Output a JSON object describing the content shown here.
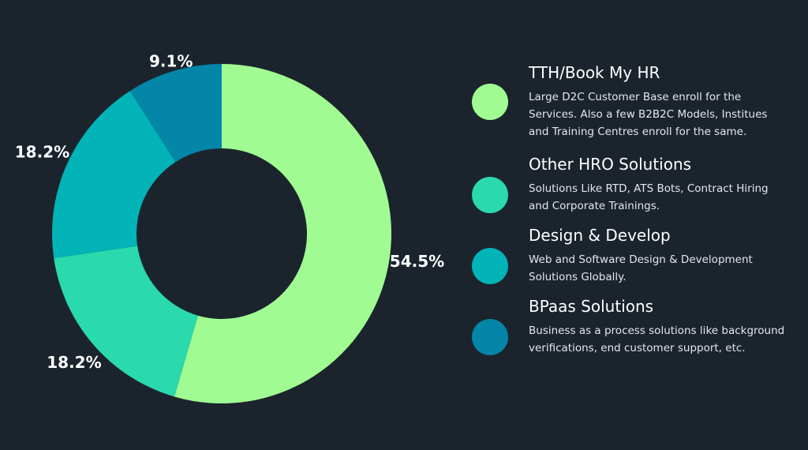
{
  "chart_data": {
    "type": "pie",
    "donut": true,
    "categories": [
      "TTH/Book My HR",
      "Other HRO Solutions",
      "Design & Develop",
      "BPaas Solutions"
    ],
    "values": [
      54.5,
      18.2,
      18.2,
      9.1
    ],
    "labels": [
      "54.5%",
      "18.2%",
      "18.2%",
      "9.1%"
    ],
    "colors": [
      "#a0fc92",
      "#2ad9ac",
      "#02b3b8",
      "#0386a8"
    ],
    "legend_position": "right"
  },
  "legend": {
    "items": [
      {
        "title": "TTH/Book My HR",
        "description": "Large D2C Customer Base enroll for the Services. Also a few B2B2C Models, Institues and Training Centres enroll for the same.",
        "color": "#a0fc92"
      },
      {
        "title": "Other HRO Solutions",
        "description": "Solutions Like RTD, ATS Bots, Contract Hiring and Corporate Trainings.",
        "color": "#2ad9ac"
      },
      {
        "title": "Design & Develop",
        "description": "Web and Software Design & Development Solutions Globally.",
        "color": "#02b3b8"
      },
      {
        "title": "BPaas Solutions",
        "description": "Business as a process solutions like background verifications, end customer support, etc.",
        "color": "#0386a8"
      }
    ]
  }
}
